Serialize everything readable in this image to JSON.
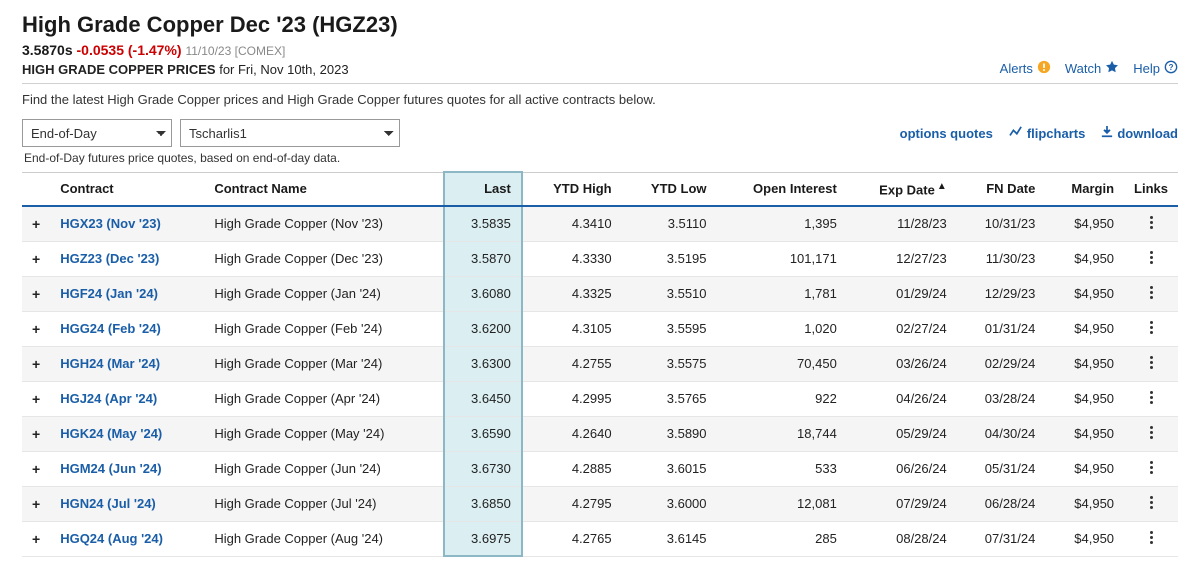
{
  "header": {
    "title": "High Grade Copper Dec '23 (HGZ23)",
    "last_price": "3.5870s",
    "change": "-0.0535 (-1.47%)",
    "meta": "11/10/23 [COMEX]",
    "prices_label": "HIGH GRADE COPPER PRICES",
    "prices_for": " for Fri, Nov 10th, 2023",
    "actions": {
      "alerts": "Alerts",
      "watch": "Watch",
      "help": "Help"
    }
  },
  "description": "Find the latest High Grade Copper prices and High Grade Copper futures quotes for all active contracts below.",
  "controls": {
    "view_selected": "End-of-Day",
    "template_selected": "Tscharlis1",
    "options_quotes": "options quotes",
    "flipcharts": "flipcharts",
    "download": "download",
    "subnote": "End-of-Day futures price quotes, based on end-of-day data."
  },
  "table": {
    "columns": {
      "contract": "Contract",
      "contract_name": "Contract Name",
      "last": "Last",
      "ytd_high": "YTD High",
      "ytd_low": "YTD Low",
      "open_interest": "Open Interest",
      "exp_date": "Exp Date",
      "fn_date": "FN Date",
      "margin": "Margin",
      "links": "Links"
    },
    "rows": [
      {
        "code": "HGX23 (Nov '23)",
        "name": "High Grade Copper (Nov '23)",
        "last": "3.5835",
        "ytd_high": "4.3410",
        "ytd_low": "3.5110",
        "oi": "1,395",
        "exp": "11/28/23",
        "fn": "10/31/23",
        "margin": "$4,950"
      },
      {
        "code": "HGZ23 (Dec '23)",
        "name": "High Grade Copper (Dec '23)",
        "last": "3.5870",
        "ytd_high": "4.3330",
        "ytd_low": "3.5195",
        "oi": "101,171",
        "exp": "12/27/23",
        "fn": "11/30/23",
        "margin": "$4,950"
      },
      {
        "code": "HGF24 (Jan '24)",
        "name": "High Grade Copper (Jan '24)",
        "last": "3.6080",
        "ytd_high": "4.3325",
        "ytd_low": "3.5510",
        "oi": "1,781",
        "exp": "01/29/24",
        "fn": "12/29/23",
        "margin": "$4,950"
      },
      {
        "code": "HGG24 (Feb '24)",
        "name": "High Grade Copper (Feb '24)",
        "last": "3.6200",
        "ytd_high": "4.3105",
        "ytd_low": "3.5595",
        "oi": "1,020",
        "exp": "02/27/24",
        "fn": "01/31/24",
        "margin": "$4,950"
      },
      {
        "code": "HGH24 (Mar '24)",
        "name": "High Grade Copper (Mar '24)",
        "last": "3.6300",
        "ytd_high": "4.2755",
        "ytd_low": "3.5575",
        "oi": "70,450",
        "exp": "03/26/24",
        "fn": "02/29/24",
        "margin": "$4,950"
      },
      {
        "code": "HGJ24 (Apr '24)",
        "name": "High Grade Copper (Apr '24)",
        "last": "3.6450",
        "ytd_high": "4.2995",
        "ytd_low": "3.5765",
        "oi": "922",
        "exp": "04/26/24",
        "fn": "03/28/24",
        "margin": "$4,950"
      },
      {
        "code": "HGK24 (May '24)",
        "name": "High Grade Copper (May '24)",
        "last": "3.6590",
        "ytd_high": "4.2640",
        "ytd_low": "3.5890",
        "oi": "18,744",
        "exp": "05/29/24",
        "fn": "04/30/24",
        "margin": "$4,950"
      },
      {
        "code": "HGM24 (Jun '24)",
        "name": "High Grade Copper (Jun '24)",
        "last": "3.6730",
        "ytd_high": "4.2885",
        "ytd_low": "3.6015",
        "oi": "533",
        "exp": "06/26/24",
        "fn": "05/31/24",
        "margin": "$4,950"
      },
      {
        "code": "HGN24 (Jul '24)",
        "name": "High Grade Copper (Jul '24)",
        "last": "3.6850",
        "ytd_high": "4.2795",
        "ytd_low": "3.6000",
        "oi": "12,081",
        "exp": "07/29/24",
        "fn": "06/28/24",
        "margin": "$4,950"
      },
      {
        "code": "HGQ24 (Aug '24)",
        "name": "High Grade Copper (Aug '24)",
        "last": "3.6975",
        "ytd_high": "4.2765",
        "ytd_low": "3.6145",
        "oi": "285",
        "exp": "08/28/24",
        "fn": "07/31/24",
        "margin": "$4,950"
      }
    ]
  },
  "colors": {
    "link": "#1a5ea8",
    "negative": "#cc0000",
    "highlight_bg": "#dbeef2",
    "highlight_border": "#8db7c4",
    "row_alt": "#f5f5f5",
    "border": "#d0d0d0",
    "alert_orange": "#f5a623"
  }
}
